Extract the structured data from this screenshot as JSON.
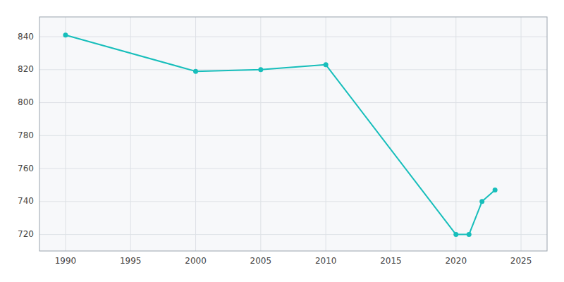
{
  "chart_data": {
    "type": "line",
    "x": [
      1990,
      2000,
      2005,
      2010,
      2020,
      2021,
      2022,
      2023
    ],
    "values": [
      841,
      819,
      820,
      823,
      720,
      720,
      740,
      747
    ],
    "color": "#17BEBB",
    "marker": "circle",
    "xlim": [
      1988,
      2027
    ],
    "ylim": [
      710,
      852
    ],
    "xticks": [
      1990,
      1995,
      2000,
      2005,
      2010,
      2015,
      2020,
      2025
    ],
    "yticks": [
      720,
      740,
      760,
      780,
      800,
      820,
      840
    ],
    "grid": true
  }
}
